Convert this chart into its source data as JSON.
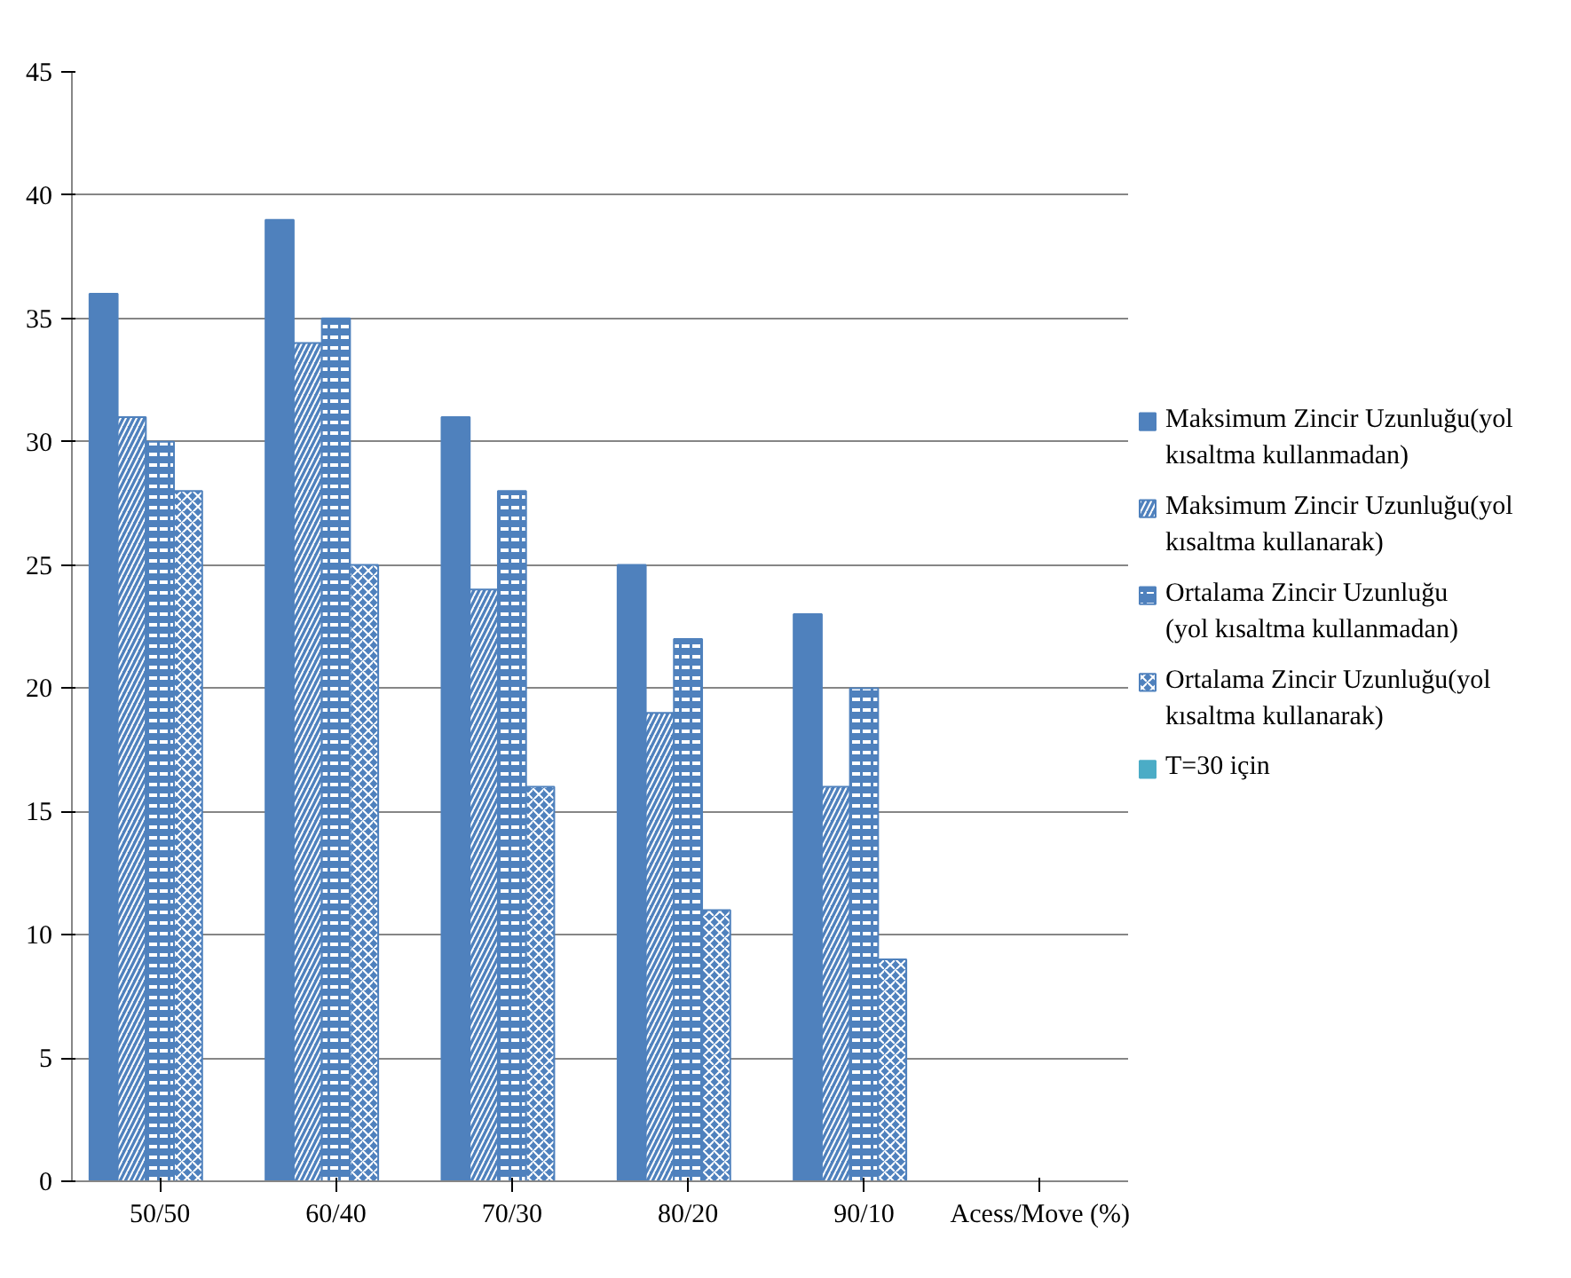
{
  "chart_data": {
    "type": "bar",
    "categories": [
      "50/50",
      "60/40",
      "70/30",
      "80/20",
      "90/10",
      "Acess/Move (%)"
    ],
    "series": [
      {
        "name": "Maksimum Zincir Uzunluğu(yol kısaltma kullanmadan)",
        "color": "#4f81bd",
        "values": [
          36,
          39,
          31,
          25,
          23,
          null
        ]
      },
      {
        "name": "Maksimum Zincir Uzunluğu(yol kısaltma kullanarak)",
        "color": "#4f81bd",
        "values": [
          31,
          34,
          24,
          19,
          16,
          null
        ]
      },
      {
        "name": "Ortalama Zincir Uzunluğu (yol kısaltma kullanmadan)",
        "color": "#4f81bd",
        "values": [
          30,
          35,
          28,
          22,
          20,
          null
        ]
      },
      {
        "name": "Ortalama Zincir Uzunluğu(yol kısaltma kullanarak)",
        "color": "#4f81bd",
        "values": [
          28,
          25,
          16,
          11,
          9,
          null
        ]
      },
      {
        "name": "T=30 için",
        "color": "#4bacc6",
        "values": [
          null,
          null,
          null,
          null,
          null,
          null
        ]
      }
    ],
    "ylim": [
      0,
      45
    ],
    "yticks": [
      0,
      5,
      10,
      15,
      20,
      25,
      30,
      35,
      40,
      45
    ],
    "grid": "y",
    "legend": "right"
  }
}
